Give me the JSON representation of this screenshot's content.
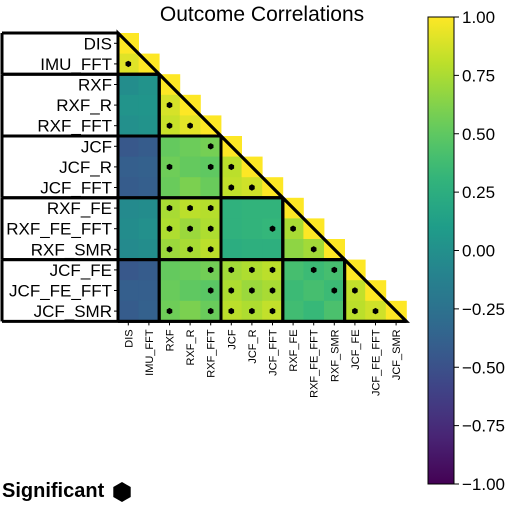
{
  "chart_data": {
    "type": "heatmap",
    "title": "Outcome Correlations",
    "labels": [
      "DIS",
      "IMU_FFT",
      "RXF",
      "RXF_R",
      "RXF_FFT",
      "JCF",
      "JCF_R",
      "JCF_FFT",
      "RXF_FE",
      "RXF_FE_FFT",
      "RXF_SMR",
      "JCF_FE",
      "JCF_FE_FFT",
      "JCF_SMR"
    ],
    "groups": [
      [
        0,
        1
      ],
      [
        2,
        4
      ],
      [
        5,
        7
      ],
      [
        8,
        10
      ],
      [
        11,
        13
      ]
    ],
    "values": [
      [
        1.0
      ],
      [
        0.91,
        1.0
      ],
      [
        -0.02,
        0.02,
        1.0
      ],
      [
        0.03,
        0.04,
        0.88,
        1.0
      ],
      [
        0.0,
        0.02,
        0.84,
        0.92,
        1.0
      ],
      [
        -0.45,
        -0.42,
        0.52,
        0.55,
        0.58,
        1.0
      ],
      [
        -0.4,
        -0.38,
        0.56,
        0.52,
        0.5,
        0.8,
        1.0
      ],
      [
        -0.42,
        -0.4,
        0.54,
        0.6,
        0.54,
        0.82,
        0.86,
        1.0
      ],
      [
        -0.05,
        -0.03,
        0.74,
        0.8,
        0.78,
        0.28,
        0.3,
        0.3,
        1.0
      ],
      [
        -0.03,
        0.0,
        0.76,
        0.7,
        0.76,
        0.28,
        0.3,
        0.32,
        0.74,
        1.0
      ],
      [
        -0.05,
        -0.02,
        0.7,
        0.74,
        0.8,
        0.24,
        0.26,
        0.26,
        0.66,
        0.72,
        1.0
      ],
      [
        -0.45,
        -0.42,
        0.52,
        0.54,
        0.57,
        0.72,
        0.76,
        0.8,
        0.4,
        0.36,
        0.4,
        1.0
      ],
      [
        -0.4,
        -0.4,
        0.54,
        0.5,
        0.48,
        0.76,
        0.7,
        0.74,
        0.36,
        0.4,
        0.36,
        0.82,
        1.0
      ],
      [
        -0.42,
        -0.38,
        0.56,
        0.6,
        0.54,
        0.8,
        0.76,
        0.82,
        0.38,
        0.34,
        0.42,
        0.8,
        0.86,
        1.0
      ]
    ],
    "significant": [
      [
        1,
        0
      ],
      [
        3,
        2
      ],
      [
        4,
        2
      ],
      [
        4,
        3
      ],
      [
        5,
        4
      ],
      [
        6,
        2
      ],
      [
        6,
        4
      ],
      [
        6,
        5
      ],
      [
        7,
        5
      ],
      [
        7,
        6
      ],
      [
        8,
        2
      ],
      [
        8,
        3
      ],
      [
        8,
        4
      ],
      [
        9,
        2
      ],
      [
        9,
        3
      ],
      [
        9,
        4
      ],
      [
        9,
        7
      ],
      [
        9,
        8
      ],
      [
        10,
        2
      ],
      [
        10,
        3
      ],
      [
        10,
        4
      ],
      [
        10,
        9
      ],
      [
        11,
        4
      ],
      [
        11,
        5
      ],
      [
        11,
        6
      ],
      [
        11,
        7
      ],
      [
        11,
        9
      ],
      [
        11,
        10
      ],
      [
        12,
        4
      ],
      [
        12,
        5
      ],
      [
        12,
        6
      ],
      [
        12,
        7
      ],
      [
        12,
        10
      ],
      [
        12,
        11
      ],
      [
        13,
        2
      ],
      [
        13,
        4
      ],
      [
        13,
        5
      ],
      [
        13,
        6
      ],
      [
        13,
        7
      ],
      [
        13,
        11
      ],
      [
        13,
        12
      ]
    ],
    "colorbar": {
      "min": -1.0,
      "max": 1.0,
      "ticks": [
        "1.00",
        "0.75",
        "0.50",
        "0.25",
        "0.00",
        "−0.25",
        "−0.50",
        "−0.75",
        "−1.00"
      ]
    },
    "colormap": "viridis",
    "legend": {
      "label": "Significant",
      "marker": "hexagon",
      "placement": "bottom-left"
    }
  }
}
